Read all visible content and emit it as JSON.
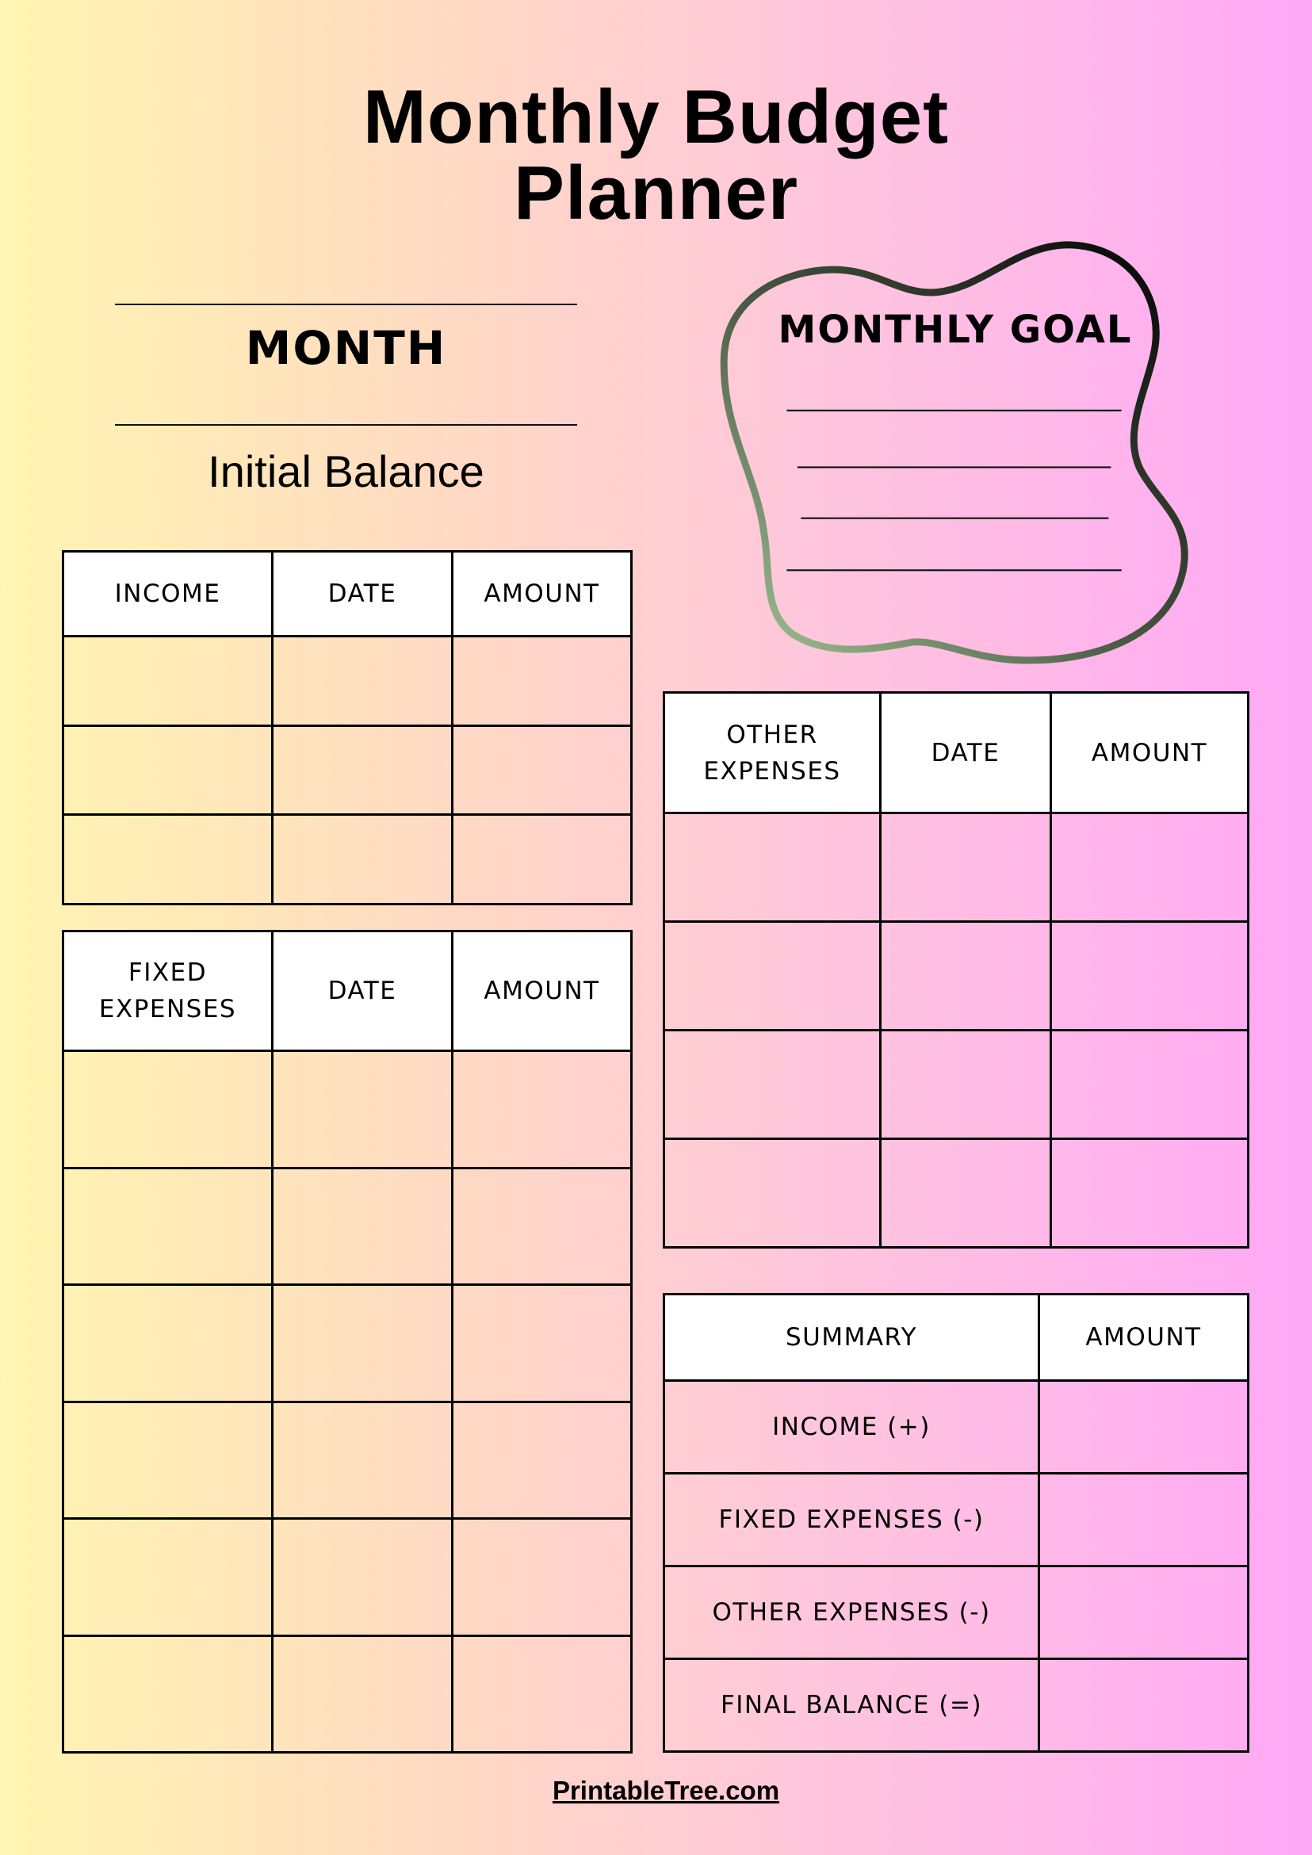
{
  "title": {
    "line1": "Monthly Budget",
    "line2": "Planner"
  },
  "month_label": "MONTH",
  "initial_balance_label": "Initial Balance",
  "monthly_goal": {
    "title": "MONTHLY GOAL",
    "blank_lines": 4,
    "outline_gradient": [
      "#000000",
      "#a8c89a"
    ]
  },
  "income_table": {
    "headers": [
      "INCOME",
      "DATE",
      "AMOUNT"
    ],
    "blank_rows": 3
  },
  "fixed_expenses_table": {
    "headers": [
      "FIXED EXPENSES",
      "DATE",
      "AMOUNT"
    ],
    "blank_rows": 6
  },
  "other_expenses_table": {
    "headers": [
      "OTHER EXPENSES",
      "DATE",
      "AMOUNT"
    ],
    "blank_rows": 4
  },
  "summary_table": {
    "headers": [
      "SUMMARY",
      "AMOUNT"
    ],
    "rows": [
      "INCOME (+)",
      "FIXED EXPENSES (-)",
      "OTHER EXPENSES (-)",
      "FINAL BALANCE (=)"
    ]
  },
  "footer": "PrintableTree.com",
  "colors": {
    "gradient_left": "#fff5b0",
    "gradient_right": "#ffa8f6",
    "header_bg": "#ffffff",
    "border": "#000000"
  }
}
